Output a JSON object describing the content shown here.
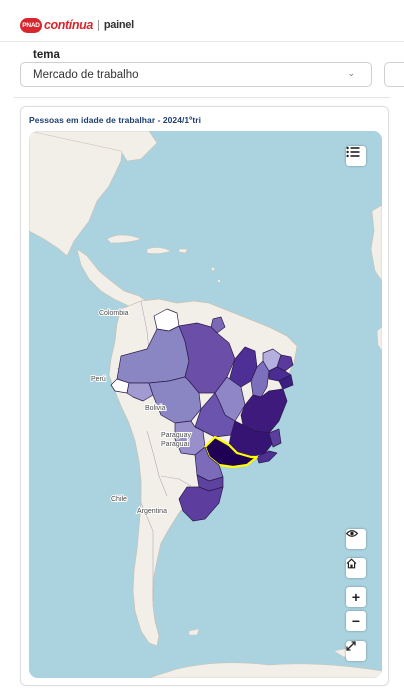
{
  "app": {
    "logo_badge": "PNAD",
    "logo_word": "contínua",
    "logo_sub": "painel"
  },
  "filters": {
    "tema_label": "tema",
    "tema_value": "Mercado de trabalho"
  },
  "card": {
    "title": "Pessoas em idade de trabalhar - 2024/1ºtri"
  },
  "map": {
    "country_labels": [
      "Colombia",
      "Perú",
      "Bolivia",
      "Paraguay",
      "Paraguai",
      "Chile",
      "Argentina"
    ],
    "highlighted_state": "São Paulo",
    "colors": {
      "ocean": "#aad3df",
      "land": "#f2efe9",
      "highlight_border": "#ffff00"
    }
  },
  "controls": {
    "legend_icon": "list-icon",
    "visibility_icon": "eye-icon",
    "home_icon": "home-icon",
    "zoom_in_label": "+",
    "zoom_out_label": "−",
    "fullscreen_icon": "expand-icon"
  }
}
